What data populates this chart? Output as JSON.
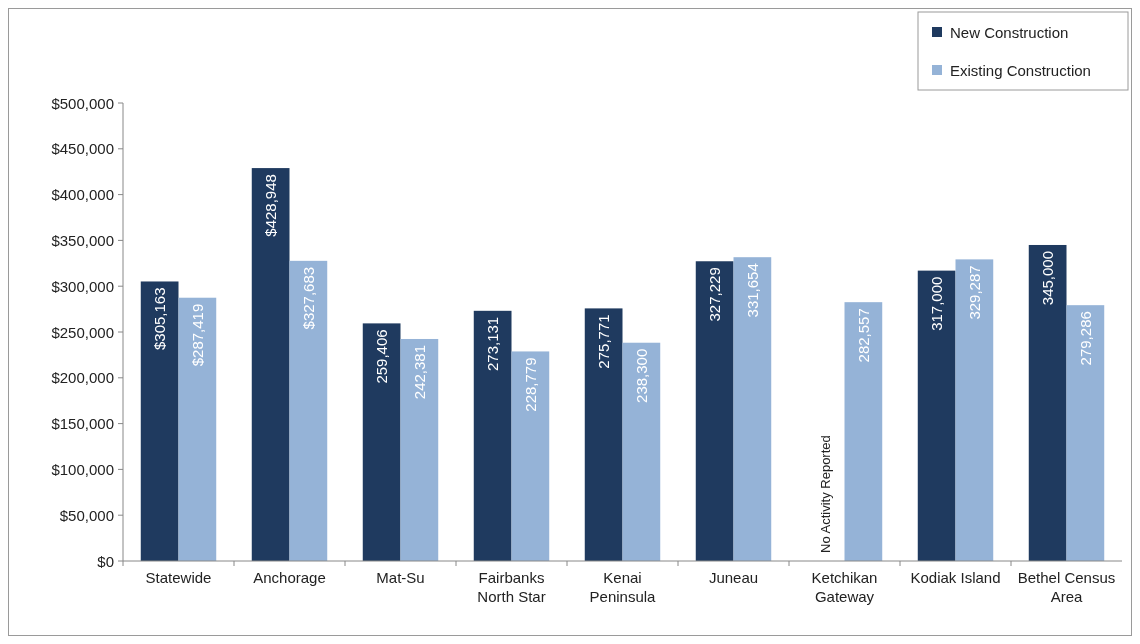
{
  "chart_data": {
    "type": "bar",
    "categories": [
      "Statewide",
      "Anchorage",
      "Mat-Su",
      "Fairbanks North Star",
      "Kenai Peninsula",
      "Juneau",
      "Ketchikan Gateway",
      "Kodiak Island",
      "Bethel Census Area"
    ],
    "series": [
      {
        "name": "New Construction",
        "color": "#1f3a5f",
        "values": [
          305163,
          428948,
          259406,
          273131,
          275771,
          327229,
          null,
          317000,
          345000
        ],
        "value_labels": [
          "$305,163",
          "$428,948",
          "259,406",
          "273,131",
          "275,771",
          "327,229",
          null,
          "317,000",
          "345,000"
        ]
      },
      {
        "name": "Existing Construction",
        "color": "#95b3d7",
        "values": [
          287419,
          327683,
          242381,
          228779,
          238300,
          331654,
          282557,
          329287,
          279286
        ],
        "value_labels": [
          "$287,419",
          "$327,683",
          "242,381",
          "228,779",
          "238,300",
          "331,654",
          "282,557",
          "329,287",
          "279,286"
        ]
      }
    ],
    "ylim": [
      0,
      500000
    ],
    "yticks": [
      {
        "value": 0,
        "label": "$0"
      },
      {
        "value": 50000,
        "label": "$50,000"
      },
      {
        "value": 100000,
        "label": "$100,000"
      },
      {
        "value": 150000,
        "label": "$150,000"
      },
      {
        "value": 200000,
        "label": "$200,000"
      },
      {
        "value": 250000,
        "label": "$250,000"
      },
      {
        "value": 300000,
        "label": "$300,000"
      },
      {
        "value": 350000,
        "label": "$350,000"
      },
      {
        "value": 400000,
        "label": "$400,000"
      },
      {
        "value": 450000,
        "label": "$450,000"
      },
      {
        "value": 500000,
        "label": "$500,000"
      }
    ],
    "annotations": [
      {
        "text": "No Activity Reported",
        "x": "Ketchikan Gateway"
      }
    ],
    "legend": "top right",
    "grid": false
  }
}
